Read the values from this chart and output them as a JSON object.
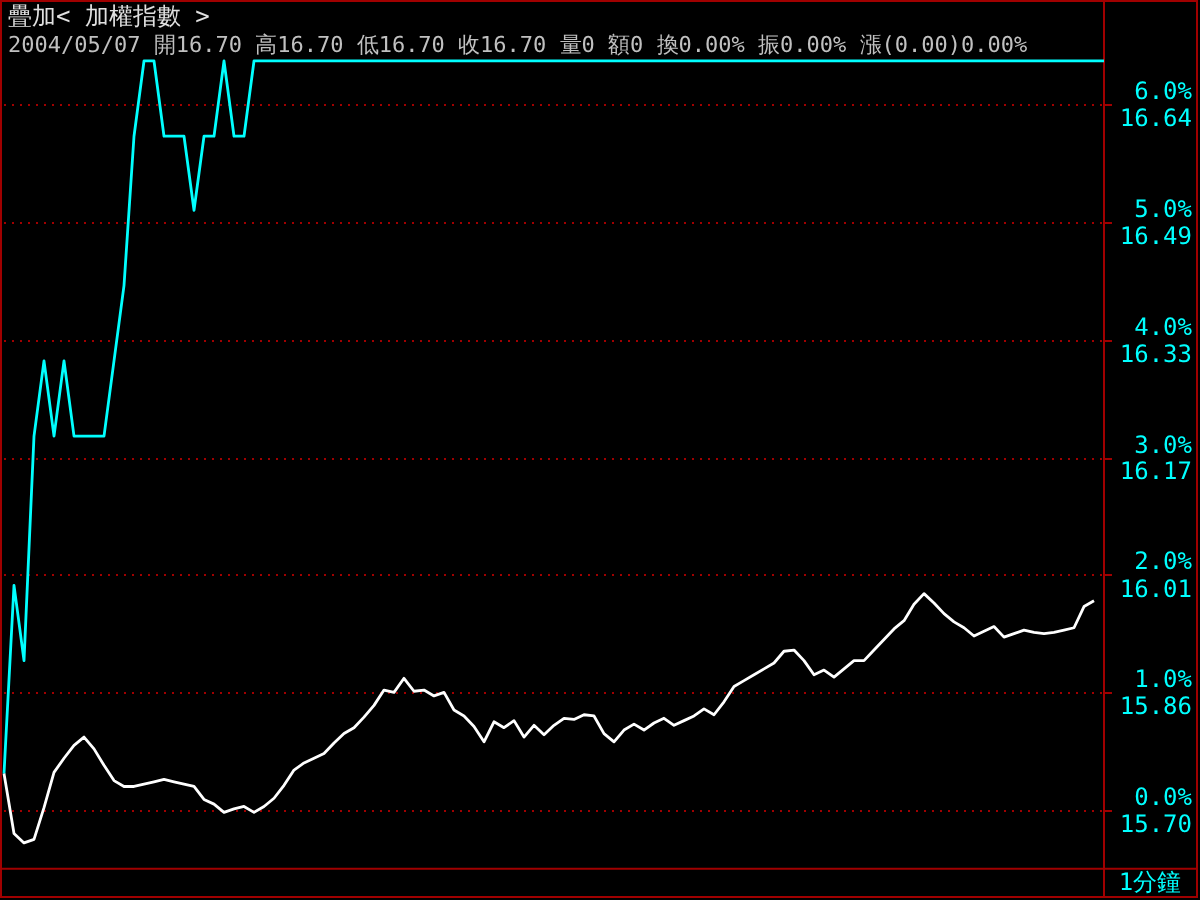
{
  "chart_data": {
    "type": "line",
    "title": "疊加< 加權指數 >",
    "subtitle": "2004/05/07 開16.70 高16.70 低16.70 收16.70 量0 額0 換0.00% 振0.00% 漲(0.00)0.00%",
    "categories": [
      null,
      null,
      null,
      null,
      null,
      null,
      null,
      null,
      null,
      null,
      null,
      null,
      null,
      null,
      null,
      null,
      null,
      null,
      null,
      null,
      null,
      null,
      null,
      null,
      null,
      null,
      null,
      null,
      null,
      null,
      null,
      null,
      null,
      null,
      null,
      null,
      null,
      null,
      null,
      null,
      null,
      null,
      null,
      null,
      null,
      null,
      null,
      null,
      null,
      null,
      null,
      null,
      null,
      null,
      null,
      null,
      null,
      null,
      null,
      null,
      null,
      null,
      null,
      null,
      null,
      null,
      null,
      null,
      null,
      null,
      null,
      null,
      null,
      null,
      null,
      null,
      null,
      null,
      null,
      null,
      null,
      null,
      null,
      null,
      null,
      null,
      null,
      null,
      null,
      null,
      null,
      null,
      null,
      null,
      null,
      null,
      null,
      null,
      null,
      null,
      null,
      null,
      null,
      null,
      null,
      null,
      null,
      null,
      null,
      null,
      null
    ],
    "series": [
      {
        "color": "#00ffff",
        "values": [
          0.31,
          1.91,
          1.27,
          3.18,
          3.82,
          3.18,
          3.82,
          3.18,
          3.18,
          3.18,
          3.18,
          3.82,
          4.46,
          5.73,
          6.37,
          6.37,
          5.73,
          5.73,
          5.73,
          5.1,
          5.73,
          5.73,
          6.37,
          5.73,
          5.73,
          6.37,
          6.37,
          6.37,
          6.37,
          6.37,
          6.37,
          6.37,
          6.37,
          6.37,
          6.37,
          6.37,
          6.37,
          6.37,
          6.37,
          6.37,
          6.37,
          6.37,
          6.37,
          6.37,
          6.37,
          6.37,
          6.37,
          6.37,
          6.37,
          6.37,
          6.37,
          6.37,
          6.37,
          6.37,
          6.37,
          6.37,
          6.37,
          6.37,
          6.37,
          6.37,
          6.37,
          6.37,
          6.37,
          6.37,
          6.37,
          6.37,
          6.37,
          6.37,
          6.37,
          6.37,
          6.37,
          6.37,
          6.37,
          6.37,
          6.37,
          6.37,
          6.37,
          6.37,
          6.37,
          6.37,
          6.37,
          6.37,
          6.37,
          6.37,
          6.37,
          6.37,
          6.37,
          6.37,
          6.37,
          6.37,
          6.37,
          6.37,
          6.37,
          6.37,
          6.37,
          6.37,
          6.37,
          6.37,
          6.37,
          6.37,
          6.37,
          6.37,
          6.37,
          6.37,
          6.37,
          6.37,
          6.37,
          6.37,
          6.37,
          6.37,
          6.37
        ]
      },
      {
        "color": "#ffffff",
        "values": [
          0.31,
          -0.2,
          -0.28,
          -0.25,
          0.02,
          0.32,
          0.44,
          0.55,
          0.62,
          0.52,
          0.38,
          0.25,
          0.2,
          0.2,
          0.22,
          0.24,
          0.26,
          0.24,
          0.22,
          0.2,
          0.09,
          0.05,
          -0.02,
          0.01,
          0.03,
          -0.02,
          0.03,
          0.1,
          0.21,
          0.34,
          0.4,
          0.44,
          0.48,
          0.57,
          0.65,
          0.7,
          0.79,
          0.89,
          1.02,
          1.0,
          1.12,
          1.01,
          1.02,
          0.97,
          1.0,
          0.85,
          0.8,
          0.71,
          0.58,
          0.75,
          0.7,
          0.76,
          0.62,
          0.72,
          0.64,
          0.72,
          0.78,
          0.77,
          0.81,
          0.8,
          0.65,
          0.58,
          0.68,
          0.73,
          0.68,
          0.74,
          0.78,
          0.72,
          0.76,
          0.8,
          0.86,
          0.81,
          0.92,
          1.05,
          1.1,
          1.15,
          1.2,
          1.25,
          1.35,
          1.36,
          1.27,
          1.15,
          1.19,
          1.13,
          1.2,
          1.27,
          1.27,
          1.36,
          1.45,
          1.54,
          1.61,
          1.75,
          1.84,
          1.76,
          1.67,
          1.6,
          1.55,
          1.48,
          1.52,
          1.56,
          1.47,
          1.5,
          1.53,
          1.51,
          1.5,
          1.51,
          1.53,
          1.55,
          1.73,
          1.78,
          null
        ]
      }
    ],
    "ylim": [
      -0.5,
      6.88
    ],
    "yticks": [
      {
        "value": 0,
        "label": "0.0%"
      },
      {
        "value": 1,
        "label": "1.0%"
      },
      {
        "value": 2,
        "label": "2.0%"
      },
      {
        "value": 3,
        "label": "3.0%"
      },
      {
        "value": 4,
        "label": "4.0%"
      },
      {
        "value": 5,
        "label": "5.0%"
      },
      {
        "value": 6,
        "label": "6.0%"
      }
    ],
    "y2lim": [
      15.6215,
      16.78016
    ],
    "y2ticks": [
      {
        "value": 15.7,
        "label": "15.70"
      },
      {
        "value": 15.857,
        "label": "15.86"
      },
      {
        "value": 16.014,
        "label": "16.01"
      },
      {
        "value": 16.171,
        "label": "16.17"
      },
      {
        "value": 16.328,
        "label": "16.33"
      },
      {
        "value": 16.485,
        "label": "16.49"
      },
      {
        "value": 16.642,
        "label": "16.64"
      }
    ],
    "grid": "y",
    "xlabel": "1分鐘"
  }
}
